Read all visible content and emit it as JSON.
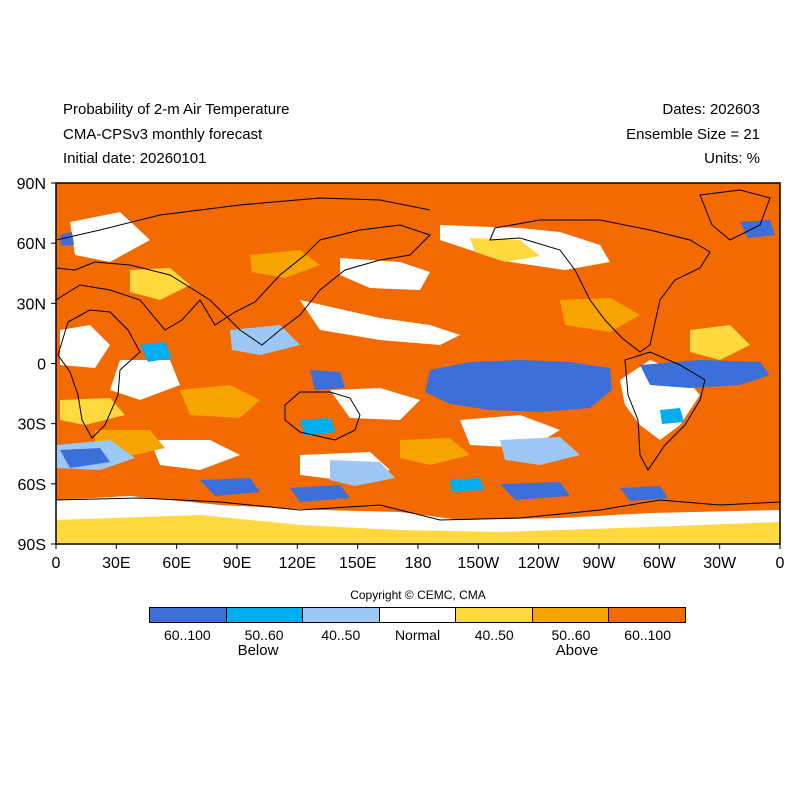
{
  "header": {
    "title_line1": "Probability of 2-m Air Temperature",
    "title_line2": "CMA-CPSv3 monthly forecast",
    "title_line3": "Initial date: 20260101",
    "dates": "Dates: 202603",
    "ensemble": "Ensemble Size = 21",
    "units": "Units: %"
  },
  "map": {
    "lat_labels": [
      "90N",
      "60N",
      "30N",
      "0",
      "30S",
      "60S",
      "90S"
    ],
    "lon_labels": [
      "0",
      "30E",
      "60E",
      "90E",
      "120E",
      "150E",
      "180",
      "150W",
      "120W",
      "90W",
      "60W",
      "30W",
      "0"
    ],
    "background_color": "#f26a00"
  },
  "copyright": "Copyright © CEMC, CMA",
  "legend": {
    "colors": [
      "#3d6fdb",
      "#00aef0",
      "#9dc8f5",
      "#ffffff",
      "#ffd93d",
      "#f8a400",
      "#f26a00"
    ],
    "labels": [
      "60..100",
      "50..60",
      "40..50",
      "Normal",
      "40..50",
      "50..60",
      "60..100"
    ],
    "below_label": "Below",
    "above_label": "Above"
  }
}
